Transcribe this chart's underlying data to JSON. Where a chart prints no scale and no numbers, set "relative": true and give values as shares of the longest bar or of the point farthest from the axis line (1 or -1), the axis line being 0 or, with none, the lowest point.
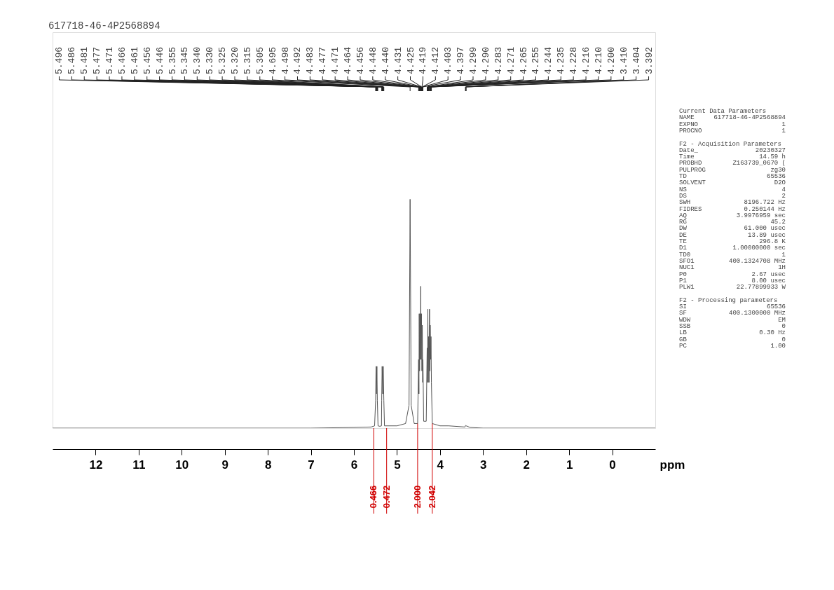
{
  "chart_data": {
    "type": "line",
    "title": "617718-46-4P2568894",
    "xlabel": "ppm",
    "relative": true,
    "grid": false,
    "marker": "none",
    "line_style": "solid",
    "xlim": [
      13.0,
      -1.0
    ],
    "xticks": [
      12,
      11,
      10,
      9,
      8,
      7,
      6,
      5,
      4,
      3,
      2,
      1,
      0
    ],
    "series": [
      {
        "color": "#555555",
        "x": [
          13.0,
          7.0,
          6.0,
          5.6,
          5.52,
          5.496,
          5.486,
          5.476,
          5.466,
          5.456,
          5.44,
          5.4,
          5.36,
          5.355,
          5.345,
          5.33,
          5.32,
          5.305,
          5.29,
          5.0,
          4.8,
          4.72,
          4.695,
          4.67,
          4.6,
          4.52,
          4.498,
          4.49,
          4.483,
          4.475,
          4.464,
          4.456,
          4.448,
          4.44,
          4.431,
          4.42,
          4.412,
          4.403,
          4.397,
          4.38,
          4.32,
          4.299,
          4.29,
          4.283,
          4.275,
          4.265,
          4.255,
          4.244,
          4.235,
          4.228,
          4.216,
          4.21,
          4.2,
          4.18,
          4.0,
          3.8,
          3.42,
          3.41,
          3.404,
          3.392,
          3.3,
          3.0,
          -1.0
        ],
        "values": [
          0.0,
          0.0,
          0.003,
          0.005,
          0.01,
          0.12,
          0.27,
          0.15,
          0.27,
          0.12,
          0.01,
          0.008,
          0.01,
          0.12,
          0.27,
          0.15,
          0.27,
          0.12,
          0.01,
          0.01,
          0.02,
          0.1,
          1.0,
          0.1,
          0.02,
          0.02,
          0.3,
          0.15,
          0.5,
          0.25,
          0.5,
          0.3,
          0.62,
          0.3,
          0.5,
          0.25,
          0.45,
          0.2,
          0.3,
          0.03,
          0.03,
          0.35,
          0.2,
          0.52,
          0.2,
          0.4,
          0.2,
          0.52,
          0.25,
          0.45,
          0.3,
          0.4,
          0.2,
          0.02,
          0.01,
          0.01,
          0.005,
          0.01,
          0.012,
          0.01,
          0.003,
          0.0,
          0.0
        ]
      }
    ],
    "annotations": [
      {
        "text": "5.496",
        "x": 5.496
      },
      {
        "text": "5.486",
        "x": 5.486
      },
      {
        "text": "5.481",
        "x": 5.481
      },
      {
        "text": "5.477",
        "x": 5.477
      },
      {
        "text": "5.471",
        "x": 5.471
      },
      {
        "text": "5.466",
        "x": 5.466
      },
      {
        "text": "5.461",
        "x": 5.461
      },
      {
        "text": "5.456",
        "x": 5.456
      },
      {
        "text": "5.446",
        "x": 5.446
      },
      {
        "text": "5.355",
        "x": 5.355
      },
      {
        "text": "5.345",
        "x": 5.345
      },
      {
        "text": "5.340",
        "x": 5.34
      },
      {
        "text": "5.330",
        "x": 5.33
      },
      {
        "text": "5.325",
        "x": 5.325
      },
      {
        "text": "5.320",
        "x": 5.32
      },
      {
        "text": "5.315",
        "x": 5.315
      },
      {
        "text": "5.305",
        "x": 5.305
      },
      {
        "text": "4.695",
        "x": 4.695
      },
      {
        "text": "4.498",
        "x": 4.498
      },
      {
        "text": "4.492",
        "x": 4.492
      },
      {
        "text": "4.483",
        "x": 4.483
      },
      {
        "text": "4.477",
        "x": 4.477
      },
      {
        "text": "4.471",
        "x": 4.471
      },
      {
        "text": "4.464",
        "x": 4.464
      },
      {
        "text": "4.456",
        "x": 4.456
      },
      {
        "text": "4.448",
        "x": 4.448
      },
      {
        "text": "4.440",
        "x": 4.44
      },
      {
        "text": "4.431",
        "x": 4.431
      },
      {
        "text": "4.425",
        "x": 4.425
      },
      {
        "text": "4.419",
        "x": 4.419
      },
      {
        "text": "4.412",
        "x": 4.412
      },
      {
        "text": "4.403",
        "x": 4.403
      },
      {
        "text": "4.397",
        "x": 4.397
      },
      {
        "text": "4.299",
        "x": 4.299
      },
      {
        "text": "4.290",
        "x": 4.29
      },
      {
        "text": "4.283",
        "x": 4.283
      },
      {
        "text": "4.271",
        "x": 4.271
      },
      {
        "text": "4.265",
        "x": 4.265
      },
      {
        "text": "4.255",
        "x": 4.255
      },
      {
        "text": "4.244",
        "x": 4.244
      },
      {
        "text": "4.235",
        "x": 4.235
      },
      {
        "text": "4.228",
        "x": 4.228
      },
      {
        "text": "4.216",
        "x": 4.216
      },
      {
        "text": "4.210",
        "x": 4.21
      },
      {
        "text": "4.200",
        "x": 4.2
      },
      {
        "text": "3.410",
        "x": 3.41
      },
      {
        "text": "3.404",
        "x": 3.404
      },
      {
        "text": "3.392",
        "x": 3.392
      },
      {
        "text": "0.466",
        "x": 5.54,
        "y": 0
      },
      {
        "text": "0.472",
        "x": 5.24,
        "y": 0
      },
      {
        "text": "2.000",
        "x": 4.52,
        "y": 0.02
      },
      {
        "text": "2.042",
        "x": 4.18,
        "y": 0.02
      },
      "Current Data Parameters",
      "NAME  617718-46-4P2568894",
      "EXPNO  1",
      "PROCNO  1",
      "F2 - Acquisition Parameters",
      "Date_  20230327",
      "Time  14.59 h",
      "PROBHD  Z163739_0670 (",
      "PULPROG  zg30",
      "TD  65536",
      "SOLVENT  D2O",
      "NS  4",
      "DS  2",
      "SWH  8196.722 Hz",
      "FIDRES  0.250144 Hz",
      "AQ  3.9976959 sec",
      "RG  45.2",
      "DW  61.000 usec",
      "DE  13.89 usec",
      "TE  296.8 K",
      "D1  1.00000000 sec",
      "TD0  1",
      "SFO1  400.1324708 MHz",
      "NUC1  1H",
      "P0  2.67 usec",
      "P1  8.00 usec",
      "PLW1  22.77899933 W",
      "F2 - Processing parameters",
      "SI  65536",
      "SF  400.1300000 MHz",
      "WDW  EM",
      "SSB  0",
      "LB  0.30 Hz",
      "GB  0",
      "PC  1.00"
    ]
  }
}
